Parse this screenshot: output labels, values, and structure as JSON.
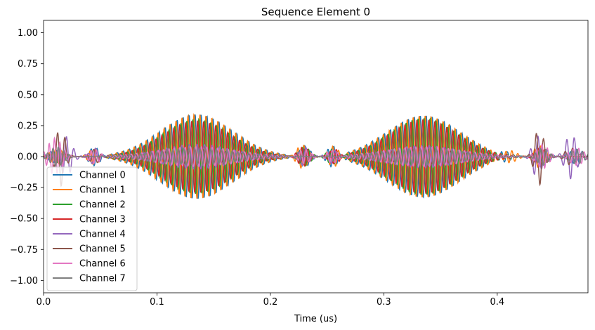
{
  "chart_data": {
    "type": "line",
    "title": "Sequence Element 0",
    "xlabel": "Time (us)",
    "ylabel": "",
    "xlim": [
      0.0,
      0.48
    ],
    "ylim": [
      -1.1,
      1.1
    ],
    "xticks": [
      0.0,
      0.1,
      0.2,
      0.3,
      0.4
    ],
    "xtick_labels": [
      "0.0",
      "0.1",
      "0.2",
      "0.3",
      "0.4"
    ],
    "yticks": [
      -1.0,
      -0.75,
      -0.5,
      -0.25,
      0.0,
      0.25,
      0.5,
      0.75,
      1.0
    ],
    "ytick_labels": [
      "−1.00",
      "−0.75",
      "−0.50",
      "−0.25",
      "0.00",
      "0.25",
      "0.50",
      "0.75",
      "1.00"
    ],
    "grid": false,
    "legend_position": "lower-left",
    "series": [
      {
        "name": "Channel 0",
        "color": "#1f77b4",
        "freq": 190,
        "phase": 0.0,
        "pulses": [
          {
            "center": 0.135,
            "width": 0.032,
            "amp": 0.34
          },
          {
            "center": 0.335,
            "width": 0.032,
            "amp": 0.33
          },
          {
            "center": 0.01,
            "width": 0.006,
            "amp": 0.05
          },
          {
            "center": 0.045,
            "width": 0.005,
            "amp": 0.08
          },
          {
            "center": 0.23,
            "width": 0.005,
            "amp": 0.09
          },
          {
            "center": 0.255,
            "width": 0.005,
            "amp": 0.1
          },
          {
            "center": 0.405,
            "width": 0.007,
            "amp": 0.07
          },
          {
            "center": 0.44,
            "width": 0.005,
            "amp": 0.08
          },
          {
            "center": 0.47,
            "width": 0.006,
            "amp": 0.06
          }
        ]
      },
      {
        "name": "Channel 1",
        "color": "#ff7f0e",
        "freq": 190,
        "phase": 1.2,
        "pulses": [
          {
            "center": 0.135,
            "width": 0.032,
            "amp": 0.34
          },
          {
            "center": 0.335,
            "width": 0.032,
            "amp": 0.33
          },
          {
            "center": 0.012,
            "width": 0.006,
            "amp": 0.06
          },
          {
            "center": 0.045,
            "width": 0.005,
            "amp": 0.07
          },
          {
            "center": 0.228,
            "width": 0.005,
            "amp": 0.1
          },
          {
            "center": 0.256,
            "width": 0.005,
            "amp": 0.1
          },
          {
            "center": 0.41,
            "width": 0.007,
            "amp": 0.07
          },
          {
            "center": 0.437,
            "width": 0.005,
            "amp": 0.09
          }
        ]
      },
      {
        "name": "Channel 2",
        "color": "#2ca02c",
        "freq": 190,
        "phase": 2.4,
        "pulses": [
          {
            "center": 0.135,
            "width": 0.03,
            "amp": 0.3
          },
          {
            "center": 0.335,
            "width": 0.03,
            "amp": 0.31
          },
          {
            "center": 0.014,
            "width": 0.006,
            "amp": 0.05
          },
          {
            "center": 0.23,
            "width": 0.005,
            "amp": 0.08
          },
          {
            "center": 0.255,
            "width": 0.005,
            "amp": 0.07
          },
          {
            "center": 0.44,
            "width": 0.005,
            "amp": 0.06
          }
        ]
      },
      {
        "name": "Channel 3",
        "color": "#d62728",
        "freq": 190,
        "phase": 3.6,
        "pulses": [
          {
            "center": 0.135,
            "width": 0.03,
            "amp": 0.29
          },
          {
            "center": 0.335,
            "width": 0.03,
            "amp": 0.3
          },
          {
            "center": 0.012,
            "width": 0.006,
            "amp": 0.05
          },
          {
            "center": 0.229,
            "width": 0.005,
            "amp": 0.08
          },
          {
            "center": 0.257,
            "width": 0.005,
            "amp": 0.07
          },
          {
            "center": 0.438,
            "width": 0.005,
            "amp": 0.07
          }
        ]
      },
      {
        "name": "Channel 4",
        "color": "#9467bd",
        "freq": 150,
        "phase": 0.6,
        "pulses": [
          {
            "center": 0.02,
            "width": 0.005,
            "amp": 0.16
          },
          {
            "center": 0.045,
            "width": 0.004,
            "amp": 0.07
          },
          {
            "center": 0.135,
            "width": 0.03,
            "amp": 0.1
          },
          {
            "center": 0.23,
            "width": 0.004,
            "amp": 0.08
          },
          {
            "center": 0.255,
            "width": 0.004,
            "amp": 0.06
          },
          {
            "center": 0.335,
            "width": 0.03,
            "amp": 0.09
          },
          {
            "center": 0.435,
            "width": 0.004,
            "amp": 0.17
          },
          {
            "center": 0.465,
            "width": 0.005,
            "amp": 0.18
          }
        ]
      },
      {
        "name": "Channel 5",
        "color": "#8c564b",
        "freq": 150,
        "phase": 2.0,
        "pulses": [
          {
            "center": 0.015,
            "width": 0.004,
            "amp": 0.24
          },
          {
            "center": 0.045,
            "width": 0.004,
            "amp": 0.06
          },
          {
            "center": 0.135,
            "width": 0.03,
            "amp": 0.06
          },
          {
            "center": 0.23,
            "width": 0.004,
            "amp": 0.06
          },
          {
            "center": 0.335,
            "width": 0.03,
            "amp": 0.06
          },
          {
            "center": 0.437,
            "width": 0.004,
            "amp": 0.23
          },
          {
            "center": 0.465,
            "width": 0.005,
            "amp": 0.07
          }
        ]
      },
      {
        "name": "Channel 6",
        "color": "#e377c2",
        "freq": 210,
        "phase": 1.0,
        "pulses": [
          {
            "center": 0.01,
            "width": 0.006,
            "amp": 0.15
          },
          {
            "center": 0.045,
            "width": 0.005,
            "amp": 0.06
          },
          {
            "center": 0.135,
            "width": 0.035,
            "amp": 0.08
          },
          {
            "center": 0.23,
            "width": 0.005,
            "amp": 0.06
          },
          {
            "center": 0.255,
            "width": 0.005,
            "amp": 0.06
          },
          {
            "center": 0.335,
            "width": 0.035,
            "amp": 0.08
          },
          {
            "center": 0.44,
            "width": 0.005,
            "amp": 0.1
          },
          {
            "center": 0.47,
            "width": 0.006,
            "amp": 0.07
          }
        ]
      },
      {
        "name": "Channel 7",
        "color": "#7f7f7f",
        "freq": 210,
        "phase": 2.8,
        "pulses": [
          {
            "center": 0.012,
            "width": 0.006,
            "amp": 0.08
          },
          {
            "center": 0.135,
            "width": 0.035,
            "amp": 0.07
          },
          {
            "center": 0.335,
            "width": 0.035,
            "amp": 0.07
          },
          {
            "center": 0.44,
            "width": 0.005,
            "amp": 0.07
          },
          {
            "center": 0.47,
            "width": 0.006,
            "amp": 0.06
          }
        ]
      }
    ]
  }
}
